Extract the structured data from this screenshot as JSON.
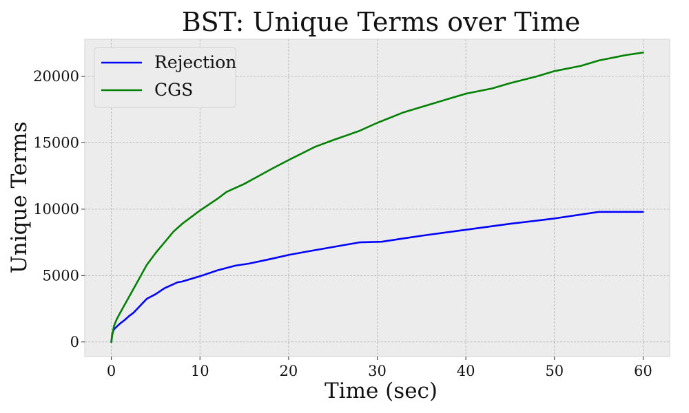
{
  "chart_data": {
    "type": "line",
    "title": "BST: Unique Terms over Time",
    "xlabel": "Time (sec)",
    "ylabel": "Unique Terms",
    "xlim": [
      -3,
      63
    ],
    "ylim": [
      -1100,
      22800
    ],
    "xticks": [
      0,
      10,
      20,
      30,
      40,
      50,
      60
    ],
    "yticks": [
      0,
      5000,
      10000,
      15000,
      20000
    ],
    "grid": true,
    "legend_position": "top-left",
    "series": [
      {
        "name": "Rejection",
        "color": "#0000ff",
        "x": [
          0,
          0.1,
          0.3,
          0.6,
          1,
          1.5,
          2,
          2.5,
          3,
          3.5,
          4,
          5,
          6,
          7,
          7.5,
          8,
          10,
          12,
          14,
          15.5,
          18,
          20,
          22,
          25,
          28,
          30.5,
          33,
          35,
          40,
          45,
          50,
          55,
          57,
          60
        ],
        "y": [
          0,
          600,
          950,
          1150,
          1400,
          1650,
          1950,
          2200,
          2550,
          2900,
          3250,
          3600,
          4050,
          4350,
          4500,
          4550,
          4950,
          5400,
          5750,
          5900,
          6250,
          6550,
          6800,
          7150,
          7500,
          7550,
          7800,
          8000,
          8450,
          8900,
          9300,
          9800,
          9800,
          9800
        ]
      },
      {
        "name": "CGS",
        "color": "#008000",
        "x": [
          0,
          0.1,
          0.3,
          0.6,
          1,
          1.5,
          2,
          3,
          4,
          5,
          6,
          7,
          8,
          10,
          12,
          13,
          15,
          18,
          20,
          23,
          25,
          28,
          30,
          33,
          35,
          38,
          40,
          43,
          45,
          48,
          50,
          53,
          55,
          58,
          60
        ],
        "y": [
          0,
          500,
          1200,
          1700,
          2200,
          2800,
          3400,
          4600,
          5800,
          6700,
          7500,
          8300,
          8900,
          9900,
          10800,
          11300,
          11900,
          13000,
          13700,
          14700,
          15200,
          15900,
          16500,
          17300,
          17700,
          18300,
          18700,
          19100,
          19500,
          20000,
          20400,
          20800,
          21200,
          21600,
          21800
        ]
      }
    ]
  }
}
